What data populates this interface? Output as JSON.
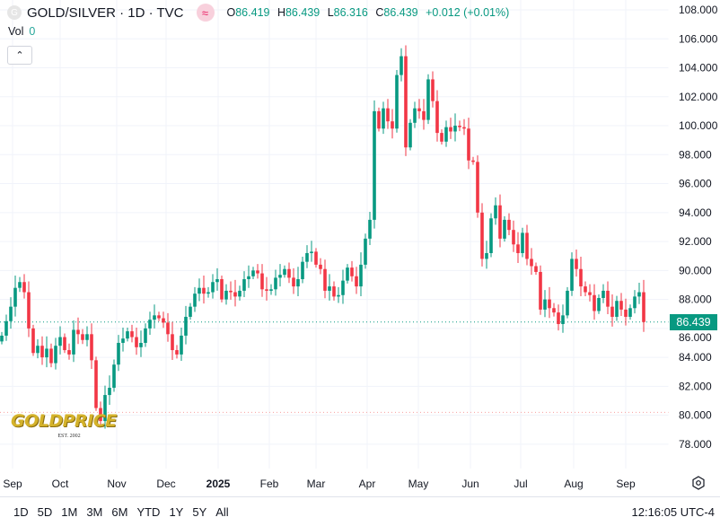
{
  "header": {
    "symbol_icon": "G",
    "title": "GOLD/SILVER · 1D · TVC",
    "source_icon": "≈",
    "ohlc": {
      "o_label": "O",
      "o": "86.419",
      "h_label": "H",
      "h": "86.439",
      "l_label": "L",
      "l": "86.316",
      "c_label": "C",
      "c": "86.439",
      "change": "+0.012 (+0.01%)"
    }
  },
  "volume": {
    "label": "Vol",
    "value": "0"
  },
  "collapse_icon": "chevron-up",
  "logo": {
    "text": "GOLDPRICE",
    "est": "EST. 2002"
  },
  "bottom": {
    "ranges": [
      "1D",
      "5D",
      "1M",
      "3M",
      "6M",
      "YTD",
      "1Y",
      "5Y",
      "All"
    ],
    "clock": "12:16:05 UTC-4"
  },
  "colors": {
    "up": "#089981",
    "down": "#f23645",
    "grid": "#f0f3fa"
  },
  "chart_data": {
    "type": "candlestick",
    "title": "GOLD/SILVER · 1D · TVC",
    "last_price": "86.439",
    "last_value": 86.439,
    "ylim": [
      76.5,
      109
    ],
    "yticks": [
      "108.000",
      "106.000",
      "104.000",
      "102.000",
      "100.000",
      "98.000",
      "96.000",
      "94.000",
      "92.000",
      "90.000",
      "88.000",
      "86.000",
      "84.000",
      "82.000",
      "80.000",
      "78.000"
    ],
    "ytick_values": [
      108,
      106,
      104,
      102,
      100,
      98,
      96,
      94,
      92,
      90,
      88,
      86,
      84,
      82,
      80,
      78
    ],
    "xticks": [
      "Sep",
      "Oct",
      "Nov",
      "Dec",
      "2025",
      "Feb",
      "Mar",
      "Apr",
      "May",
      "Jun",
      "Jul",
      "Aug",
      "Sep"
    ],
    "xtick_bar_index": [
      2.4,
      13,
      25.6,
      36.6,
      48.2,
      59.6,
      70,
      81.4,
      92.8,
      104.4,
      115.6,
      127.4,
      139
    ],
    "closes": [
      85.5,
      86.5,
      87.5,
      88.8,
      89.2,
      88.5,
      86,
      84.3,
      84.8,
      84,
      84.6,
      83.6,
      84.8,
      85.4,
      84.5,
      84.2,
      85.9,
      85.6,
      85.2,
      85.6,
      83.8,
      80.5,
      79.6,
      81.4,
      81.9,
      83.5,
      85,
      85.3,
      85.8,
      85.4,
      84.7,
      85,
      86,
      86.6,
      86.9,
      86.7,
      86.4,
      85.6,
      84.5,
      84.2,
      85.5,
      86.8,
      87.5,
      88.4,
      88.8,
      88.4,
      88.5,
      89.2,
      89.4,
      88,
      88.6,
      88.5,
      88.2,
      88.6,
      89.4,
      89.6,
      90,
      89.8,
      88.7,
      88.6,
      88.7,
      89.5,
      89.7,
      90.1,
      89.5,
      88.9,
      89.4,
      90.6,
      91.2,
      91.3,
      90.4,
      90.1,
      88.6,
      88.9,
      88.2,
      88.3,
      89.3,
      90.2,
      89.6,
      88.9,
      90.4,
      92.2,
      93.5,
      101,
      99.8,
      101.2,
      100.3,
      99.8,
      103.5,
      104.8,
      98.5,
      100.2,
      101.2,
      101,
      100.4,
      103.2,
      101.7,
      99.5,
      98.9,
      99.9,
      99.6,
      100,
      99.9,
      99.8,
      97.6,
      97.5,
      94,
      90.8,
      91.2,
      93.6,
      94.5,
      92.2,
      93.5,
      92.8,
      91.8,
      91.2,
      92.6,
      90.8,
      90.3,
      89.9,
      87.3,
      88,
      87.4,
      87.1,
      86.3,
      86.9,
      88.6,
      90.8,
      90.1,
      88.9,
      88.5,
      88.3,
      87.2,
      88.1,
      88.6,
      87.5,
      86.8,
      87.9,
      87.3,
      86.8,
      87.4,
      88.2,
      88.5,
      86.44
    ]
  }
}
